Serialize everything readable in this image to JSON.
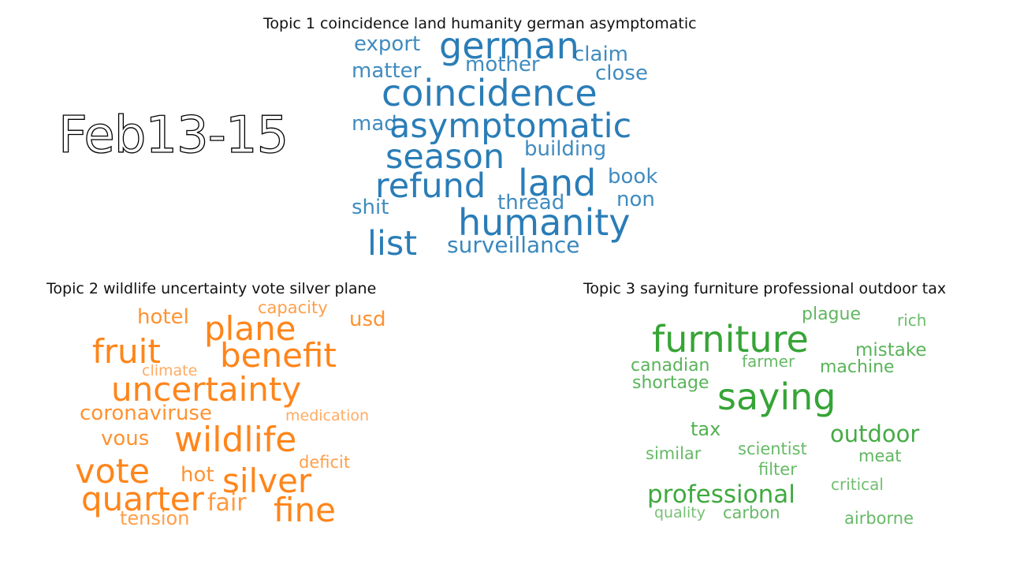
{
  "date_range": "Feb13-15",
  "topics": [
    {
      "title": "Topic 1 coincidence land humanity german asymptomatic",
      "color": "#1f77b4",
      "words": [
        {
          "text": "german"
        },
        {
          "text": "export"
        },
        {
          "text": "claim"
        },
        {
          "text": "matter"
        },
        {
          "text": "mother"
        },
        {
          "text": "close"
        },
        {
          "text": "coincidence"
        },
        {
          "text": "mad"
        },
        {
          "text": "asymptomatic"
        },
        {
          "text": "season"
        },
        {
          "text": "building"
        },
        {
          "text": "refund"
        },
        {
          "text": "land"
        },
        {
          "text": "book"
        },
        {
          "text": "non"
        },
        {
          "text": "shit"
        },
        {
          "text": "thread"
        },
        {
          "text": "humanity"
        },
        {
          "text": "list"
        },
        {
          "text": "surveillance"
        }
      ]
    },
    {
      "title": "Topic 2 wildlife uncertainty vote silver plane",
      "color": "#ff7f0e",
      "words": [
        {
          "text": "capacity"
        },
        {
          "text": "hotel"
        },
        {
          "text": "plane"
        },
        {
          "text": "usd"
        },
        {
          "text": "fruit"
        },
        {
          "text": "benefit"
        },
        {
          "text": "climate"
        },
        {
          "text": "uncertainty"
        },
        {
          "text": "coronaviruse"
        },
        {
          "text": "medication"
        },
        {
          "text": "vous"
        },
        {
          "text": "wildlife"
        },
        {
          "text": "deficit"
        },
        {
          "text": "vote"
        },
        {
          "text": "hot"
        },
        {
          "text": "silver"
        },
        {
          "text": "quarter"
        },
        {
          "text": "fair"
        },
        {
          "text": "fine"
        },
        {
          "text": "tension"
        }
      ]
    },
    {
      "title": "Topic 3 saying furniture professional outdoor tax",
      "color": "#2ca02c",
      "words": [
        {
          "text": "plague"
        },
        {
          "text": "rich"
        },
        {
          "text": "furniture"
        },
        {
          "text": "mistake"
        },
        {
          "text": "canadian"
        },
        {
          "text": "farmer"
        },
        {
          "text": "machine"
        },
        {
          "text": "shortage"
        },
        {
          "text": "saying"
        },
        {
          "text": "tax"
        },
        {
          "text": "outdoor"
        },
        {
          "text": "similar"
        },
        {
          "text": "scientist"
        },
        {
          "text": "meat"
        },
        {
          "text": "filter"
        },
        {
          "text": "critical"
        },
        {
          "text": "professional"
        },
        {
          "text": "quality"
        },
        {
          "text": "carbon"
        },
        {
          "text": "airborne"
        }
      ]
    }
  ]
}
